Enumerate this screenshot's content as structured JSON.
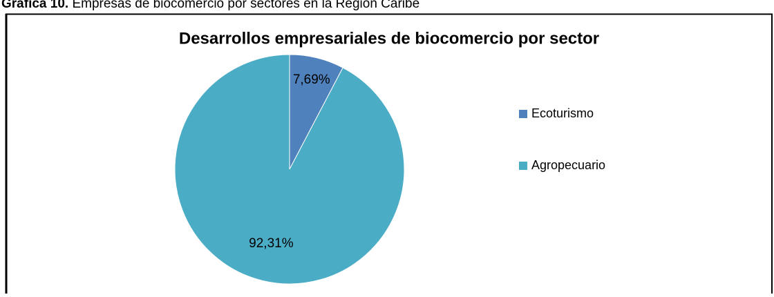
{
  "caption": {
    "label": "Gráfica 10.",
    "text": "Empresas de biocomercio por sectores en la Región Caribe"
  },
  "chart_data": {
    "type": "pie",
    "title": "Desarrollos empresariales de biocomercio por sector",
    "categories": [
      "Ecoturismo",
      "Agropecuario"
    ],
    "values": [
      7.69,
      92.31
    ],
    "value_labels": [
      "7,69%",
      "92,31%"
    ],
    "colors": [
      "#4f81bd",
      "#4bacc6"
    ],
    "legend": "right"
  }
}
